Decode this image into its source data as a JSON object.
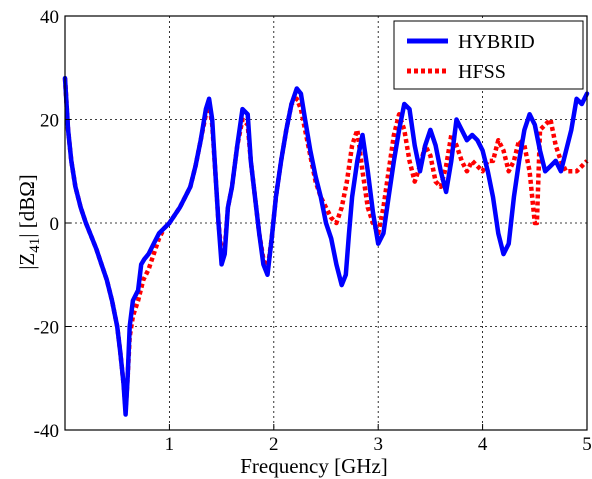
{
  "chart_data": {
    "type": "line",
    "title": "",
    "xlabel": "Frequency [GHz]",
    "ylabel": "|Z41| [dBΩ]",
    "ylabel_parts": {
      "open": "|Z",
      "sub": "41",
      "close": "| [dBΩ]"
    },
    "xlim": [
      0,
      5
    ],
    "ylim": [
      -40,
      40
    ],
    "xticks": [
      1,
      2,
      3,
      4,
      5
    ],
    "yticks": [
      -40,
      -20,
      0,
      20,
      40
    ],
    "grid": true,
    "legend_position": "top-right",
    "series": [
      {
        "name": "HYBRID",
        "color": "#0000ff",
        "style": "solid",
        "x": [
          0.0,
          0.03,
          0.06,
          0.1,
          0.15,
          0.2,
          0.25,
          0.3,
          0.35,
          0.4,
          0.45,
          0.5,
          0.53,
          0.56,
          0.58,
          0.6,
          0.62,
          0.65,
          0.7,
          0.73,
          0.76,
          0.8,
          0.85,
          0.9,
          0.95,
          1.0,
          1.05,
          1.1,
          1.15,
          1.2,
          1.25,
          1.3,
          1.35,
          1.38,
          1.41,
          1.44,
          1.47,
          1.5,
          1.53,
          1.56,
          1.6,
          1.65,
          1.7,
          1.75,
          1.78,
          1.82,
          1.86,
          1.9,
          1.94,
          1.98,
          2.02,
          2.07,
          2.12,
          2.17,
          2.22,
          2.26,
          2.3,
          2.35,
          2.4,
          2.45,
          2.5,
          2.55,
          2.6,
          2.65,
          2.69,
          2.72,
          2.75,
          2.8,
          2.85,
          2.9,
          2.95,
          3.0,
          3.05,
          3.1,
          3.15,
          3.2,
          3.25,
          3.3,
          3.35,
          3.4,
          3.45,
          3.5,
          3.55,
          3.6,
          3.65,
          3.7,
          3.75,
          3.8,
          3.85,
          3.9,
          3.95,
          4.0,
          4.05,
          4.1,
          4.15,
          4.2,
          4.25,
          4.3,
          4.35,
          4.4,
          4.45,
          4.5,
          4.55,
          4.6,
          4.65,
          4.7,
          4.75,
          4.8,
          4.85,
          4.9,
          4.95,
          5.0
        ],
        "y": [
          28,
          18,
          12,
          7,
          3,
          0,
          -2.5,
          -5,
          -8,
          -11,
          -15,
          -20,
          -25,
          -31,
          -37,
          -30,
          -20,
          -15,
          -13,
          -8,
          -7,
          -6,
          -4,
          -2,
          -1,
          0,
          1.5,
          3,
          5,
          7,
          11,
          16,
          22,
          24,
          20,
          10,
          0,
          -8,
          -6,
          3,
          7,
          15,
          22,
          21,
          12,
          5,
          -2,
          -8,
          -10,
          -3,
          5,
          12,
          18,
          23,
          26,
          25,
          20,
          14,
          9,
          5,
          0,
          -3,
          -8,
          -12,
          -10,
          -2,
          5,
          12,
          17,
          10,
          2,
          -4,
          -2,
          5,
          12,
          18,
          23,
          22,
          15,
          10,
          15,
          18,
          15,
          10,
          6,
          12,
          20,
          18,
          16,
          17,
          16,
          14,
          10,
          5,
          -2,
          -6,
          -4,
          5,
          12,
          18,
          21,
          19,
          14,
          10,
          11,
          12,
          10,
          14,
          18,
          24,
          23,
          25
        ]
      },
      {
        "name": "HFSS",
        "color": "#ff0000",
        "style": "dotted",
        "x": [
          0.0,
          0.03,
          0.06,
          0.1,
          0.15,
          0.2,
          0.25,
          0.3,
          0.35,
          0.4,
          0.45,
          0.5,
          0.53,
          0.56,
          0.58,
          0.6,
          0.62,
          0.65,
          0.7,
          0.75,
          0.8,
          0.85,
          0.9,
          0.95,
          1.0,
          1.05,
          1.1,
          1.15,
          1.2,
          1.25,
          1.3,
          1.35,
          1.38,
          1.41,
          1.44,
          1.47,
          1.5,
          1.53,
          1.56,
          1.6,
          1.65,
          1.7,
          1.75,
          1.78,
          1.82,
          1.86,
          1.9,
          1.94,
          1.98,
          2.02,
          2.07,
          2.12,
          2.17,
          2.22,
          2.26,
          2.3,
          2.35,
          2.4,
          2.45,
          2.5,
          2.55,
          2.6,
          2.65,
          2.7,
          2.75,
          2.8,
          2.85,
          2.9,
          2.95,
          3.0,
          3.05,
          3.1,
          3.15,
          3.2,
          3.25,
          3.3,
          3.35,
          3.4,
          3.45,
          3.5,
          3.55,
          3.6,
          3.65,
          3.7,
          3.75,
          3.8,
          3.85,
          3.9,
          3.95,
          4.0,
          4.05,
          4.1,
          4.15,
          4.2,
          4.25,
          4.3,
          4.35,
          4.4,
          4.45,
          4.5,
          4.52,
          4.55,
          4.6,
          4.65,
          4.7,
          4.75,
          4.8,
          4.85,
          4.9,
          4.95,
          5.0
        ],
        "y": [
          28,
          18,
          12,
          7,
          3,
          0,
          -2.5,
          -5,
          -8,
          -11,
          -15,
          -20,
          -25,
          -31,
          -36,
          -30,
          -22,
          -18,
          -15,
          -11,
          -9,
          -6,
          -3,
          -1,
          0,
          1.5,
          3,
          5,
          7,
          11,
          16,
          21,
          23,
          19,
          10,
          0,
          -6,
          -5,
          3,
          7,
          15,
          20,
          19,
          12,
          5,
          -2,
          -7,
          -9,
          -3,
          5,
          12,
          18,
          23,
          24,
          22,
          18,
          13,
          8,
          5,
          3,
          1,
          0,
          3,
          8,
          15,
          18,
          10,
          3,
          0,
          -2,
          3,
          10,
          17,
          21,
          18,
          12,
          8,
          11,
          15,
          13,
          8,
          7,
          11,
          17,
          15,
          12,
          10,
          12,
          11,
          10,
          12,
          12,
          16,
          14,
          10,
          12,
          16,
          15,
          10,
          0,
          0,
          18,
          19,
          20,
          15,
          12,
          10,
          10,
          10,
          11,
          12
        ]
      }
    ]
  }
}
